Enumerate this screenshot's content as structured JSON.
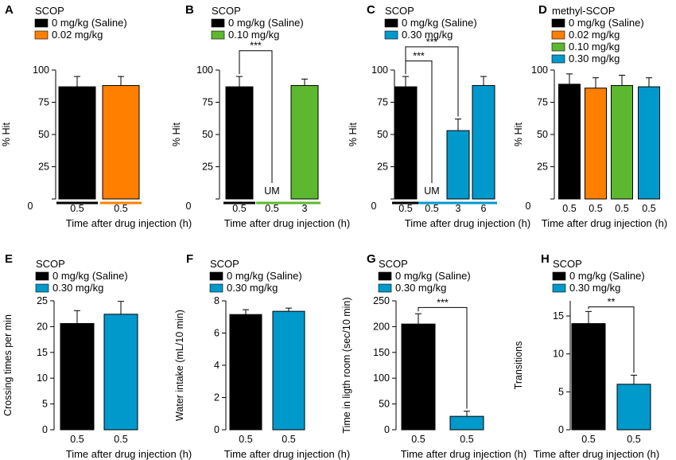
{
  "colors": {
    "black": "#000000",
    "orange": "#ff7f00",
    "green": "#5cb82e",
    "blue": "#0099cc"
  },
  "chart_data": [
    {
      "panel": "A",
      "type": "bar",
      "title": "SCOP",
      "legend": [
        {
          "label": "0 mg/kg (Saline)",
          "color": "black"
        },
        {
          "label": "0.02 mg/kg",
          "color": "orange"
        }
      ],
      "ylabel": "% Hit",
      "xlabel": "Time after drug injection (h)",
      "ylim": [
        0,
        100
      ],
      "yticks": [
        0,
        25,
        50,
        75,
        100
      ],
      "categories": [
        "0.5",
        "0.5"
      ],
      "values": [
        87,
        88
      ],
      "errors": [
        8,
        7
      ],
      "bar_colors": [
        "black",
        "orange"
      ],
      "group_lines": [
        {
          "from": 0,
          "to": 0,
          "color": "black"
        },
        {
          "from": 1,
          "to": 1,
          "color": "orange"
        }
      ]
    },
    {
      "panel": "B",
      "type": "bar",
      "title": "SCOP",
      "legend": [
        {
          "label": "0 mg/kg (Saline)",
          "color": "black"
        },
        {
          "label": "0.10 mg/kg",
          "color": "green"
        }
      ],
      "ylabel": "% Hit",
      "xlabel": "Time after drug injection (h)",
      "ylim": [
        0,
        100
      ],
      "yticks": [
        0,
        25,
        50,
        75,
        100
      ],
      "categories": [
        "0.5",
        "0.5",
        "3"
      ],
      "values": [
        87,
        null,
        88
      ],
      "errors": [
        8,
        0,
        5
      ],
      "bar_colors": [
        "black",
        "green",
        "green"
      ],
      "bar_notes": [
        "",
        "UM",
        ""
      ],
      "group_lines": [
        {
          "from": 0,
          "to": 0,
          "color": "black"
        },
        {
          "from": 1,
          "to": 2,
          "color": "green"
        }
      ],
      "significance": [
        {
          "from": 0,
          "to": 1,
          "label": "***",
          "level": 115
        }
      ]
    },
    {
      "panel": "C",
      "type": "bar",
      "title": "SCOP",
      "legend": [
        {
          "label": "0 mg/kg (Saline)",
          "color": "black"
        },
        {
          "label": "0.30 mg/kg",
          "color": "blue"
        }
      ],
      "ylabel": "% Hit",
      "xlabel": "Time after drug injection (h)",
      "ylim": [
        0,
        100
      ],
      "yticks": [
        0,
        25,
        50,
        75,
        100
      ],
      "categories": [
        "0.5",
        "0.5",
        "3",
        "6"
      ],
      "values": [
        87,
        null,
        53,
        88
      ],
      "errors": [
        8,
        0,
        9,
        7
      ],
      "bar_colors": [
        "black",
        "blue",
        "blue",
        "blue"
      ],
      "bar_notes": [
        "",
        "UM",
        "",
        ""
      ],
      "group_lines": [
        {
          "from": 0,
          "to": 0,
          "color": "black"
        },
        {
          "from": 1,
          "to": 3,
          "color": "blue"
        }
      ],
      "significance": [
        {
          "from": 0,
          "to": 1,
          "label": "***",
          "level": 107
        },
        {
          "from": 0,
          "to": 2,
          "label": "***",
          "level": 118
        }
      ]
    },
    {
      "panel": "D",
      "type": "bar",
      "title": "methyl-SCOP",
      "legend": [
        {
          "label": "0 mg/kg (Saline)",
          "color": "black"
        },
        {
          "label": "0.02 mg/kg",
          "color": "orange"
        },
        {
          "label": "0.10 mg/kg",
          "color": "green"
        },
        {
          "label": "0.30 mg/kg",
          "color": "blue"
        }
      ],
      "ylabel": "% Hit",
      "xlabel": "Time after drug injection (h)",
      "ylim": [
        0,
        100
      ],
      "yticks": [
        0,
        25,
        50,
        75,
        100
      ],
      "categories": [
        "0.5",
        "0.5",
        "0.5",
        "0.5"
      ],
      "values": [
        89,
        86,
        88,
        87
      ],
      "errors": [
        8,
        8,
        8,
        7
      ],
      "bar_colors": [
        "black",
        "orange",
        "green",
        "blue"
      ]
    },
    {
      "panel": "E",
      "type": "bar",
      "title": "SCOP",
      "legend": [
        {
          "label": "0 mg/kg (Saline)",
          "color": "black"
        },
        {
          "label": "0.30 mg/kg",
          "color": "blue"
        }
      ],
      "ylabel": "Crossing times per min",
      "xlabel": "Time after drug injection (h)",
      "ylim": [
        0,
        25
      ],
      "yticks": [
        0,
        5,
        10,
        15,
        20,
        25
      ],
      "categories": [
        "0.5",
        "0.5"
      ],
      "values": [
        20.6,
        22.4
      ],
      "errors": [
        2.5,
        2.5
      ],
      "bar_colors": [
        "black",
        "blue"
      ]
    },
    {
      "panel": "F",
      "type": "bar",
      "title": "SCOP",
      "legend": [
        {
          "label": "0 mg/kg (Saline)",
          "color": "black"
        },
        {
          "label": "0.30 mg/kg",
          "color": "blue"
        }
      ],
      "ylabel": "Water intake (mL/10 min)",
      "xlabel": "Time after drug injection (h)",
      "ylim": [
        0,
        8
      ],
      "yticks": [
        0,
        2,
        4,
        6,
        8
      ],
      "categories": [
        "0.5",
        "0.5"
      ],
      "values": [
        7.15,
        7.35
      ],
      "errors": [
        0.3,
        0.2
      ],
      "bar_colors": [
        "black",
        "blue"
      ]
    },
    {
      "panel": "G",
      "type": "bar",
      "title": "SCOP",
      "legend": [
        {
          "label": "0 mg/kg (Saline)",
          "color": "black"
        },
        {
          "label": "0.30 mg/kg",
          "color": "blue"
        }
      ],
      "ylabel": "Time in ligth room (sec/10 min)",
      "xlabel": "Time after drug injection (h)",
      "ylim": [
        0,
        250
      ],
      "yticks": [
        0,
        50,
        100,
        150,
        200,
        250
      ],
      "categories": [
        "0.5",
        "0.5"
      ],
      "values": [
        205,
        26
      ],
      "errors": [
        20,
        10
      ],
      "bar_colors": [
        "black",
        "blue"
      ],
      "significance": [
        {
          "from": 0,
          "to": 1,
          "label": "***",
          "level": 237
        }
      ]
    },
    {
      "panel": "H",
      "type": "bar",
      "title": "SCOP",
      "legend": [
        {
          "label": "0 mg/kg (Saline)",
          "color": "black"
        },
        {
          "label": "0.30 mg/kg",
          "color": "blue"
        }
      ],
      "ylabel": "Transitions",
      "xlabel": "Time after drug injection (h)",
      "ylim": [
        0,
        17
      ],
      "yticks": [
        0,
        5,
        10,
        15
      ],
      "categories": [
        "0.5",
        "0.5"
      ],
      "values": [
        14,
        6
      ],
      "errors": [
        1.6,
        1.2
      ],
      "bar_colors": [
        "black",
        "blue"
      ],
      "significance": [
        {
          "from": 0,
          "to": 1,
          "label": "**",
          "level": 16.2
        }
      ]
    }
  ]
}
